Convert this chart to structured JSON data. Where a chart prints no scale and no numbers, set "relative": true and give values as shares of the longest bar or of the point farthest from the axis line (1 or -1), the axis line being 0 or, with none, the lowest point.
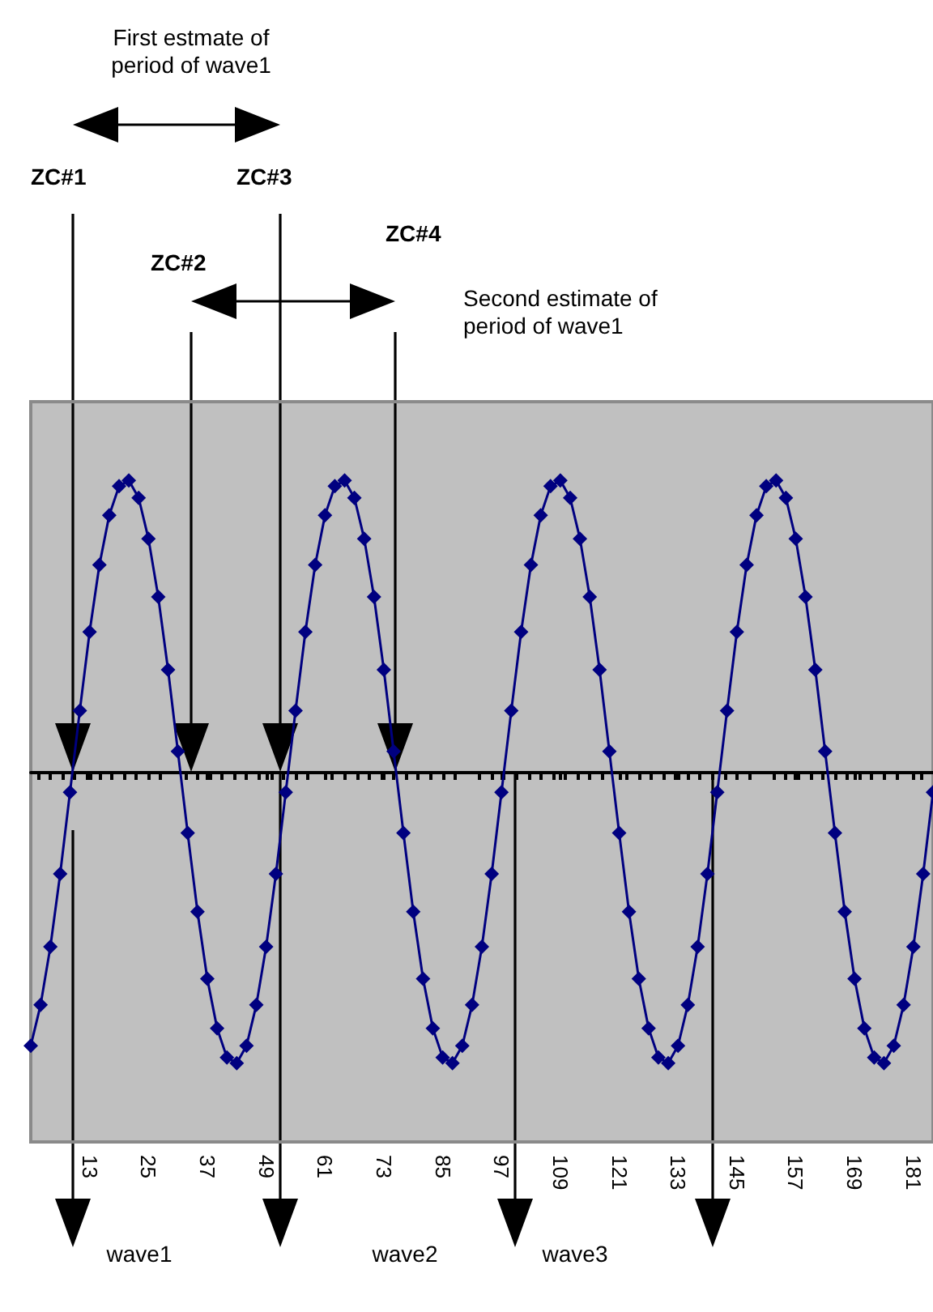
{
  "chart_data": {
    "type": "line",
    "relative": true,
    "marker": "diamond",
    "x": [
      1,
      3,
      5,
      7,
      9,
      11,
      13,
      15,
      17,
      19,
      21,
      23,
      25,
      27,
      29,
      31,
      33,
      35,
      37,
      39,
      41,
      43,
      45,
      47,
      49,
      51,
      53,
      55,
      57,
      59,
      61,
      63,
      65,
      67,
      69,
      71,
      73,
      75,
      77,
      79,
      81,
      83,
      85,
      87,
      89,
      91,
      93,
      95,
      97,
      99,
      101,
      103,
      105,
      107,
      109,
      111,
      113,
      115,
      117,
      119,
      121,
      123,
      125,
      127,
      129,
      131,
      133,
      135,
      137,
      139,
      141,
      143,
      145,
      147,
      149,
      151,
      153,
      155,
      157,
      159,
      161,
      163,
      165,
      167,
      169,
      171,
      173,
      175,
      177,
      179,
      181,
      183,
      185
    ],
    "series": [
      {
        "color": "#000080",
        "values": [
          -0.94,
          -0.8,
          -0.6,
          -0.35,
          -0.07,
          0.21,
          0.48,
          0.71,
          0.88,
          0.98,
          1.0,
          0.94,
          0.8,
          0.6,
          0.35,
          0.07,
          -0.21,
          -0.48,
          -0.71,
          -0.88,
          -0.98,
          -1.0,
          -0.94,
          -0.8,
          -0.6,
          -0.35,
          -0.07,
          0.21,
          0.48,
          0.71,
          0.88,
          0.98,
          1.0,
          0.94,
          0.8,
          0.6,
          0.35,
          0.07,
          -0.21,
          -0.48,
          -0.71,
          -0.88,
          -0.98,
          -1.0,
          -0.94,
          -0.8,
          -0.6,
          -0.35,
          -0.07,
          0.21,
          0.48,
          0.71,
          0.88,
          0.98,
          1.0,
          0.94,
          0.8,
          0.6,
          0.35,
          0.07,
          -0.21,
          -0.48,
          -0.71,
          -0.88,
          -0.98,
          -1.0,
          -0.94,
          -0.8,
          -0.6,
          -0.35,
          -0.07,
          0.21,
          0.48,
          0.71,
          0.88,
          0.98,
          1.0,
          0.94,
          0.8,
          0.6,
          0.35,
          0.07,
          -0.21,
          -0.48,
          -0.71,
          -0.88,
          -0.98,
          -1.0,
          -0.94,
          -0.8,
          -0.6,
          -0.35,
          -0.07
        ]
      }
    ],
    "xlim": [
      1,
      185
    ],
    "xticks": [
      13,
      25,
      37,
      49,
      61,
      73,
      85,
      97,
      109,
      121,
      133,
      145,
      157,
      169,
      181
    ],
    "annotations": [
      "First estmate of period of wave1",
      "ZC#1",
      "ZC#2",
      "ZC#3",
      "ZC#4",
      "Second estimate of period of wave1",
      "wave1",
      "wave2",
      "wave3"
    ]
  }
}
